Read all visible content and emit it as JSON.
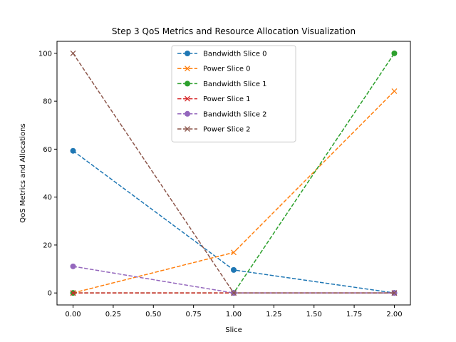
{
  "chart_data": {
    "type": "line",
    "title": "Step 3 QoS Metrics and Resource Allocation Visualization",
    "xlabel": "Slice",
    "ylabel": "QoS Metrics and Allocations",
    "xlim": [
      -0.1,
      2.1
    ],
    "ylim": [
      -5,
      105
    ],
    "xticks": [
      0.0,
      0.25,
      0.5,
      0.75,
      1.0,
      1.25,
      1.5,
      1.75,
      2.0
    ],
    "xtick_labels": [
      "0.00",
      "0.25",
      "0.50",
      "0.75",
      "1.00",
      "1.25",
      "1.50",
      "1.75",
      "2.00"
    ],
    "yticks": [
      0,
      20,
      40,
      60,
      80,
      100
    ],
    "ytick_labels": [
      "0",
      "20",
      "40",
      "60",
      "80",
      "100"
    ],
    "grid": false,
    "legend_position": "top-center",
    "x": [
      0,
      1,
      2
    ],
    "series": [
      {
        "name": "Bandwidth Slice 0",
        "values": [
          59.3,
          9.6,
          0
        ],
        "color": "#1f77b4",
        "marker": "circle"
      },
      {
        "name": "Power Slice 0",
        "values": [
          0,
          16.9,
          84.2
        ],
        "color": "#ff7f0e",
        "marker": "x"
      },
      {
        "name": "Bandwidth Slice 1",
        "values": [
          0,
          0,
          100
        ],
        "color": "#2ca02c",
        "marker": "circle"
      },
      {
        "name": "Power Slice 1",
        "values": [
          0,
          0,
          0
        ],
        "color": "#d62728",
        "marker": "x"
      },
      {
        "name": "Bandwidth Slice 2",
        "values": [
          11.1,
          0,
          0
        ],
        "color": "#9467bd",
        "marker": "circle"
      },
      {
        "name": "Power Slice 2",
        "values": [
          100,
          0,
          0
        ],
        "color": "#8c564b",
        "marker": "x"
      }
    ]
  }
}
